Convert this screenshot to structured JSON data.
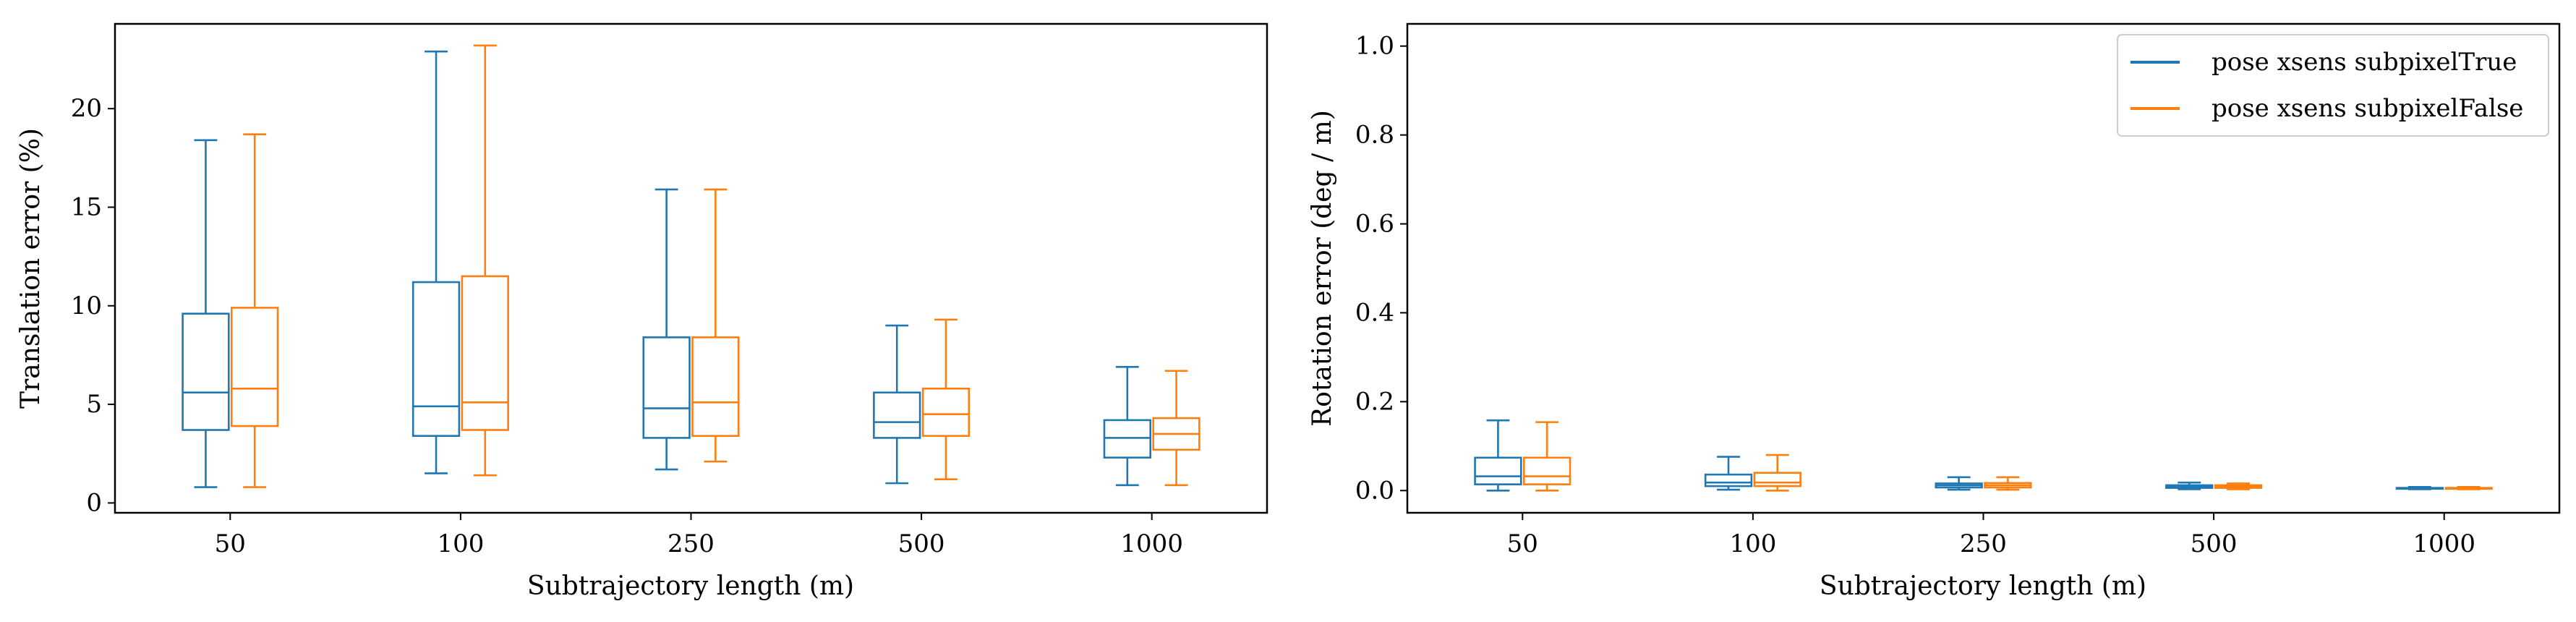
{
  "chart_data": [
    {
      "type": "box",
      "categories": [
        "50",
        "100",
        "250",
        "500",
        "1000"
      ],
      "xlabel": "Subtrajectory length (m)",
      "ylabel": "Translation error (%)",
      "ylim": [
        -0.5,
        24.3
      ],
      "yticks": [
        "0",
        "5",
        "10",
        "15",
        "20"
      ],
      "grid": false,
      "series": [
        {
          "name": "pose xsens subpixelTrue",
          "color": "#1f77b4",
          "boxes": [
            {
              "whisker_low": 0.8,
              "q1": 3.7,
              "median": 5.6,
              "q3": 9.6,
              "whisker_high": 18.4
            },
            {
              "whisker_low": 1.5,
              "q1": 3.4,
              "median": 4.9,
              "q3": 11.2,
              "whisker_high": 22.9
            },
            {
              "whisker_low": 1.7,
              "q1": 3.3,
              "median": 4.8,
              "q3": 8.4,
              "whisker_high": 15.9
            },
            {
              "whisker_low": 1.0,
              "q1": 3.3,
              "median": 4.1,
              "q3": 5.6,
              "whisker_high": 9.0
            },
            {
              "whisker_low": 0.9,
              "q1": 2.3,
              "median": 3.3,
              "q3": 4.2,
              "whisker_high": 6.9
            }
          ]
        },
        {
          "name": "pose xsens subpixelFalse",
          "color": "#ff7f0e",
          "boxes": [
            {
              "whisker_low": 0.8,
              "q1": 3.9,
              "median": 5.8,
              "q3": 9.9,
              "whisker_high": 18.7
            },
            {
              "whisker_low": 1.4,
              "q1": 3.7,
              "median": 5.1,
              "q3": 11.5,
              "whisker_high": 23.2
            },
            {
              "whisker_low": 2.1,
              "q1": 3.4,
              "median": 5.1,
              "q3": 8.4,
              "whisker_high": 15.9
            },
            {
              "whisker_low": 1.2,
              "q1": 3.4,
              "median": 4.5,
              "q3": 5.8,
              "whisker_high": 9.3
            },
            {
              "whisker_low": 0.9,
              "q1": 2.7,
              "median": 3.5,
              "q3": 4.3,
              "whisker_high": 6.7
            }
          ]
        }
      ]
    },
    {
      "type": "box",
      "categories": [
        "50",
        "100",
        "250",
        "500",
        "1000"
      ],
      "xlabel": "Subtrajectory length (m)",
      "ylabel": "Rotation error (deg / m)",
      "ylim": [
        -0.05,
        1.05
      ],
      "yticks": [
        "0.0",
        "0.2",
        "0.4",
        "0.6",
        "0.8",
        "1.0"
      ],
      "grid": false,
      "legend": "top-right",
      "series": [
        {
          "name": "pose xsens subpixelTrue",
          "color": "#1f77b4",
          "boxes": [
            {
              "whisker_low": 0.0,
              "q1": 0.014,
              "median": 0.032,
              "q3": 0.074,
              "whisker_high": 0.158
            },
            {
              "whisker_low": 0.002,
              "q1": 0.01,
              "median": 0.018,
              "q3": 0.036,
              "whisker_high": 0.076
            },
            {
              "whisker_low": 0.002,
              "q1": 0.007,
              "median": 0.012,
              "q3": 0.016,
              "whisker_high": 0.03
            },
            {
              "whisker_low": 0.003,
              "q1": 0.006,
              "median": 0.009,
              "q3": 0.012,
              "whisker_high": 0.018
            },
            {
              "whisker_low": 0.003,
              "q1": 0.004,
              "median": 0.005,
              "q3": 0.006,
              "whisker_high": 0.008
            }
          ]
        },
        {
          "name": "pose xsens subpixelFalse",
          "color": "#ff7f0e",
          "boxes": [
            {
              "whisker_low": 0.0,
              "q1": 0.014,
              "median": 0.032,
              "q3": 0.074,
              "whisker_high": 0.154
            },
            {
              "whisker_low": 0.0,
              "q1": 0.01,
              "median": 0.018,
              "q3": 0.04,
              "whisker_high": 0.08
            },
            {
              "whisker_low": 0.002,
              "q1": 0.007,
              "median": 0.012,
              "q3": 0.017,
              "whisker_high": 0.03
            },
            {
              "whisker_low": 0.003,
              "q1": 0.006,
              "median": 0.009,
              "q3": 0.012,
              "whisker_high": 0.016
            },
            {
              "whisker_low": 0.003,
              "q1": 0.004,
              "median": 0.005,
              "q3": 0.006,
              "whisker_high": 0.008
            }
          ]
        }
      ]
    }
  ]
}
